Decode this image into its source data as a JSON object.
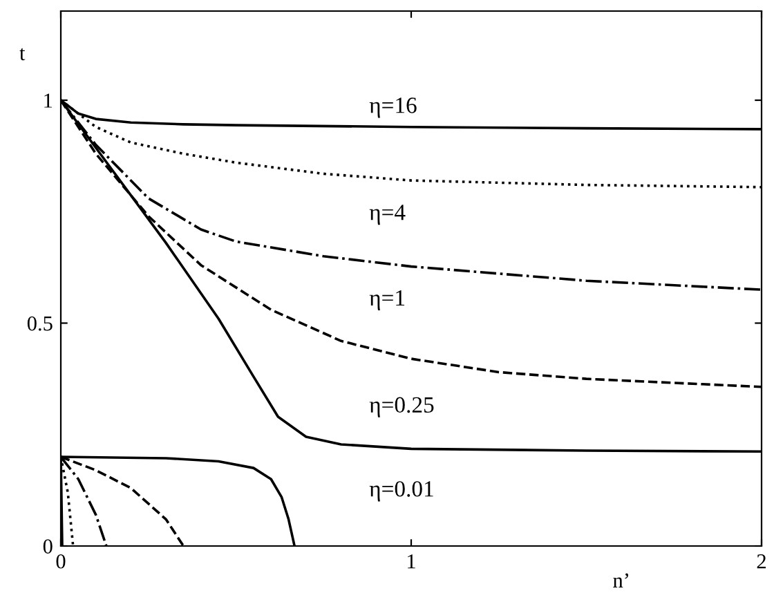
{
  "chart_data": {
    "type": "line",
    "xlabel": "n’",
    "ylabel": "t",
    "xlim": [
      0,
      2
    ],
    "ylim": [
      0,
      1.2
    ],
    "xticks": [
      0,
      1,
      2
    ],
    "yticks": [
      0,
      0.5,
      1
    ],
    "grid": false,
    "legend": false,
    "marker": "none",
    "series": [
      {
        "color": "#000000",
        "line_style": "solid",
        "x": [
          0,
          0.05,
          0.1,
          0.2,
          0.35,
          0.5,
          1,
          1.5,
          2
        ],
        "values": [
          1,
          0.97,
          0.958,
          0.95,
          0.946,
          0.944,
          0.94,
          0.937,
          0.935
        ]
      },
      {
        "color": "#000000",
        "line_style": "dotted",
        "x": [
          0,
          0.1,
          0.2,
          0.35,
          0.5,
          0.75,
          1,
          1.5,
          2
        ],
        "values": [
          1,
          0.94,
          0.905,
          0.88,
          0.86,
          0.835,
          0.82,
          0.81,
          0.805
        ]
      },
      {
        "color": "#000000",
        "line_style": "dashdot",
        "x": [
          0,
          0.1,
          0.25,
          0.4,
          0.5,
          0.75,
          1,
          1.5,
          2
        ],
        "values": [
          1,
          0.9,
          0.78,
          0.71,
          0.683,
          0.65,
          0.627,
          0.595,
          0.575
        ]
      },
      {
        "color": "#000000",
        "line_style": "dashed",
        "x": [
          0,
          0.1,
          0.25,
          0.4,
          0.6,
          0.8,
          1,
          1.25,
          1.5,
          2
        ],
        "values": [
          1,
          0.88,
          0.74,
          0.63,
          0.53,
          0.46,
          0.42,
          0.39,
          0.375,
          0.357
        ]
      },
      {
        "color": "#000000",
        "line_style": "solid",
        "x": [
          0,
          0.15,
          0.3,
          0.45,
          0.55,
          0.62,
          0.7,
          0.8,
          1,
          1.5,
          2
        ],
        "values": [
          1,
          0.84,
          0.68,
          0.51,
          0.38,
          0.29,
          0.245,
          0.228,
          0.218,
          0.214,
          0.212
        ]
      },
      {
        "color": "#000000",
        "line_style": "solid",
        "x": [
          0,
          0.3,
          0.45,
          0.55,
          0.6,
          0.63,
          0.65,
          0.667
        ],
        "values": [
          0.2,
          0.197,
          0.19,
          0.175,
          0.15,
          0.11,
          0.06,
          0
        ]
      },
      {
        "color": "#000000",
        "line_style": "dashed",
        "x": [
          0,
          0.1,
          0.2,
          0.3,
          0.35
        ],
        "values": [
          0.2,
          0.17,
          0.13,
          0.06,
          0
        ]
      },
      {
        "color": "#000000",
        "line_style": "dashdot",
        "x": [
          0,
          0.05,
          0.1,
          0.13
        ],
        "values": [
          0.2,
          0.15,
          0.07,
          0
        ]
      },
      {
        "color": "#000000",
        "line_style": "dotted",
        "x": [
          0,
          0.02,
          0.035
        ],
        "values": [
          0.2,
          0.12,
          0
        ]
      },
      {
        "color": "#000000",
        "line_style": "solid",
        "x": [
          0,
          0.004
        ],
        "values": [
          0.2,
          0
        ]
      }
    ],
    "annotations": [
      "η=16",
      "η=4",
      "η=1",
      "η=0.25",
      "η=0.01"
    ]
  }
}
